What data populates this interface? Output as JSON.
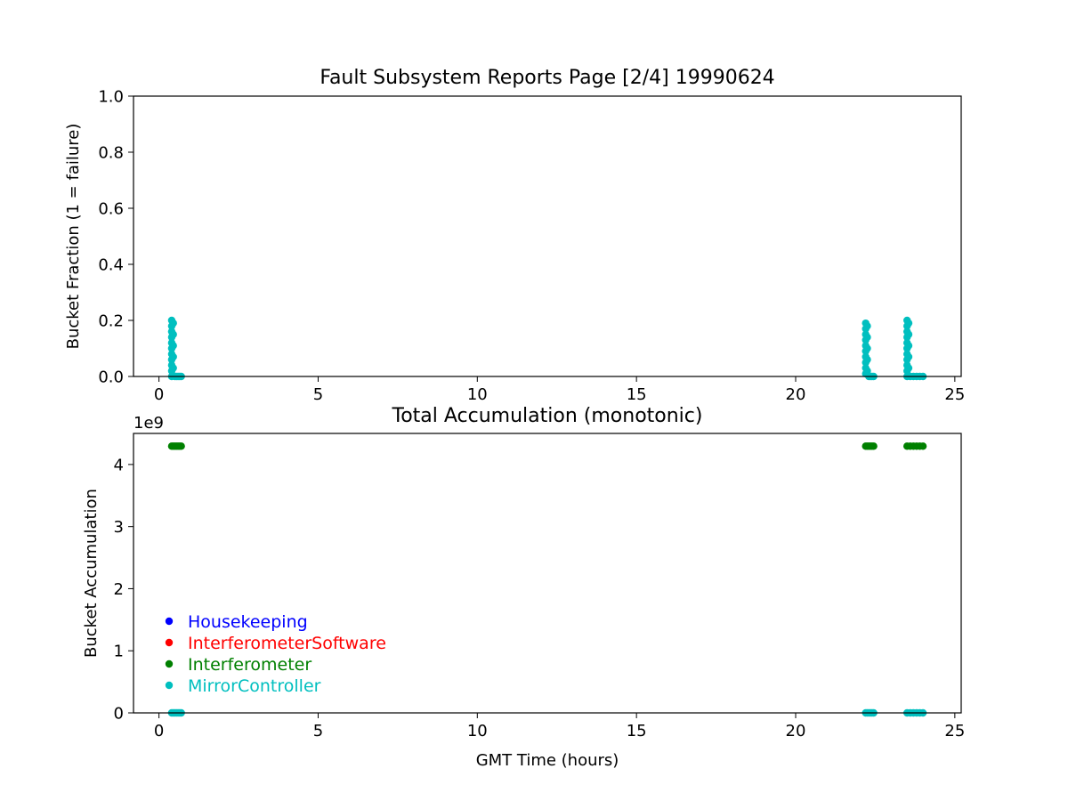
{
  "figure": {
    "title": "Fault Subsystem Reports Page [2/4] 19990624"
  },
  "chart_data": [
    {
      "type": "scatter",
      "title": "",
      "xlabel": "",
      "ylabel": "Bucket Fraction (1 = failure)",
      "xlim": [
        -0.8,
        25.2
      ],
      "ylim": [
        0,
        1.0
      ],
      "xticks": [
        0,
        5,
        10,
        15,
        20,
        25
      ],
      "yticks": [
        0.0,
        0.2,
        0.4,
        0.6,
        0.8,
        1.0
      ],
      "xtick_labels": [
        "0",
        "5",
        "10",
        "15",
        "20",
        "25"
      ],
      "ytick_labels": [
        "0.0",
        "0.2",
        "0.4",
        "0.6",
        "0.8",
        "1.0"
      ],
      "grid": false,
      "series": [
        {
          "name": "MirrorController",
          "color": "#00bfbf",
          "points": [
            [
              0.4,
              0.2
            ],
            [
              0.4,
              0.18
            ],
            [
              0.4,
              0.16
            ],
            [
              0.4,
              0.14
            ],
            [
              0.4,
              0.12
            ],
            [
              0.4,
              0.1
            ],
            [
              0.4,
              0.08
            ],
            [
              0.4,
              0.06
            ],
            [
              0.4,
              0.04
            ],
            [
              0.4,
              0.02
            ],
            [
              0.4,
              0.0
            ],
            [
              0.45,
              0.19
            ],
            [
              0.45,
              0.15
            ],
            [
              0.45,
              0.11
            ],
            [
              0.45,
              0.07
            ],
            [
              0.45,
              0.03
            ],
            [
              0.5,
              0.0
            ],
            [
              0.55,
              0.0
            ],
            [
              0.6,
              0.0
            ],
            [
              0.65,
              0.0
            ],
            [
              0.7,
              0.0
            ],
            [
              22.2,
              0.19
            ],
            [
              22.2,
              0.17
            ],
            [
              22.2,
              0.15
            ],
            [
              22.2,
              0.13
            ],
            [
              22.2,
              0.11
            ],
            [
              22.2,
              0.09
            ],
            [
              22.2,
              0.07
            ],
            [
              22.2,
              0.05
            ],
            [
              22.2,
              0.03
            ],
            [
              22.2,
              0.01
            ],
            [
              22.25,
              0.18
            ],
            [
              22.25,
              0.14
            ],
            [
              22.25,
              0.1
            ],
            [
              22.25,
              0.06
            ],
            [
              22.25,
              0.02
            ],
            [
              22.3,
              0.0
            ],
            [
              22.35,
              0.0
            ],
            [
              22.4,
              0.0
            ],
            [
              22.45,
              0.0
            ],
            [
              23.5,
              0.2
            ],
            [
              23.5,
              0.18
            ],
            [
              23.5,
              0.16
            ],
            [
              23.5,
              0.14
            ],
            [
              23.5,
              0.12
            ],
            [
              23.5,
              0.1
            ],
            [
              23.5,
              0.08
            ],
            [
              23.5,
              0.06
            ],
            [
              23.5,
              0.04
            ],
            [
              23.5,
              0.02
            ],
            [
              23.5,
              0.0
            ],
            [
              23.55,
              0.19
            ],
            [
              23.55,
              0.15
            ],
            [
              23.55,
              0.11
            ],
            [
              23.55,
              0.07
            ],
            [
              23.55,
              0.03
            ],
            [
              23.6,
              0.0
            ],
            [
              23.7,
              0.0
            ],
            [
              23.8,
              0.0
            ],
            [
              23.9,
              0.0
            ],
            [
              24.0,
              0.0
            ]
          ]
        }
      ]
    },
    {
      "type": "scatter",
      "title": "Total Accumulation (monotonic)",
      "xlabel": "GMT Time (hours)",
      "ylabel": "Bucket Accumulation",
      "offset_text": "1e9",
      "xlim": [
        -0.8,
        25.2
      ],
      "ylim": [
        0,
        4.5
      ],
      "xticks": [
        0,
        5,
        10,
        15,
        20,
        25
      ],
      "yticks": [
        0,
        1,
        2,
        3,
        4
      ],
      "xtick_labels": [
        "0",
        "5",
        "10",
        "15",
        "20",
        "25"
      ],
      "ytick_labels": [
        "0",
        "1",
        "2",
        "3",
        "4"
      ],
      "grid": false,
      "legend_placement": "lower-left",
      "legend": [
        {
          "name": "Housekeeping",
          "color": "#0000ff"
        },
        {
          "name": "InterferometerSoftware",
          "color": "#ff0000"
        },
        {
          "name": "Interferometer",
          "color": "#008000"
        },
        {
          "name": "MirrorController",
          "color": "#00bfbf"
        }
      ],
      "series": [
        {
          "name": "Interferometer",
          "color": "#008000",
          "points": [
            [
              0.4,
              4.295
            ],
            [
              0.45,
              4.295
            ],
            [
              0.5,
              4.295
            ],
            [
              0.55,
              4.295
            ],
            [
              0.6,
              4.295
            ],
            [
              0.65,
              4.295
            ],
            [
              0.7,
              4.295
            ],
            [
              22.2,
              4.295
            ],
            [
              22.25,
              4.295
            ],
            [
              22.3,
              4.295
            ],
            [
              22.35,
              4.295
            ],
            [
              22.4,
              4.295
            ],
            [
              22.45,
              4.295
            ],
            [
              23.5,
              4.295
            ],
            [
              23.6,
              4.295
            ],
            [
              23.7,
              4.295
            ],
            [
              23.8,
              4.295
            ],
            [
              23.9,
              4.295
            ],
            [
              24.0,
              4.295
            ]
          ]
        },
        {
          "name": "MirrorController",
          "color": "#00bfbf",
          "points": [
            [
              0.4,
              0.0
            ],
            [
              0.45,
              0.0
            ],
            [
              0.5,
              0.0
            ],
            [
              0.55,
              0.0
            ],
            [
              0.6,
              0.0
            ],
            [
              0.65,
              0.0
            ],
            [
              0.7,
              0.0
            ],
            [
              22.2,
              0.0
            ],
            [
              22.25,
              0.0
            ],
            [
              22.3,
              0.0
            ],
            [
              22.35,
              0.0
            ],
            [
              22.4,
              0.0
            ],
            [
              22.45,
              0.0
            ],
            [
              23.5,
              0.0
            ],
            [
              23.6,
              0.0
            ],
            [
              23.7,
              0.0
            ],
            [
              23.8,
              0.0
            ],
            [
              23.9,
              0.0
            ],
            [
              24.0,
              0.0
            ]
          ]
        }
      ]
    }
  ]
}
